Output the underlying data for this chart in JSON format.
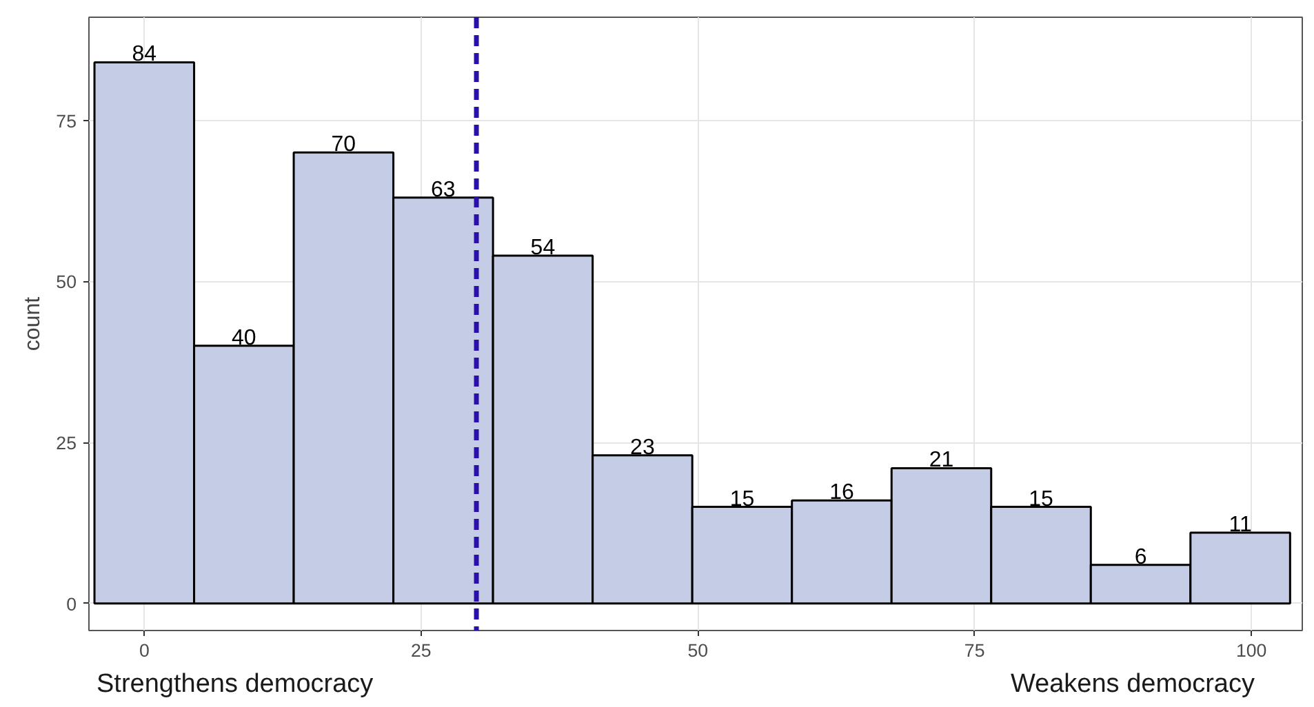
{
  "chart_data": {
    "type": "histogram",
    "ylabel": "count",
    "bins": [
      -4.5,
      4.5,
      13.5,
      22.5,
      31.5,
      40.5,
      49.5,
      58.5,
      67.5,
      76.5,
      85.5,
      94.5,
      103.5
    ],
    "values": [
      84,
      40,
      70,
      63,
      54,
      23,
      15,
      16,
      21,
      15,
      6,
      11
    ],
    "color": "#c5cce6",
    "data_labels": true,
    "xlim": [
      -5,
      104.6
    ],
    "ylim": [
      -4.2,
      91
    ],
    "xticks": [
      0,
      25,
      50,
      75,
      100
    ],
    "yticks": [
      0,
      25,
      50,
      75
    ],
    "grid": true,
    "ref_lines": [
      {
        "axis": "x",
        "value": 30,
        "color": "#2a0fa8",
        "line_style": "dashed"
      }
    ],
    "annotations": [
      "Strengthens democracy",
      "Weakens democracy"
    ]
  }
}
